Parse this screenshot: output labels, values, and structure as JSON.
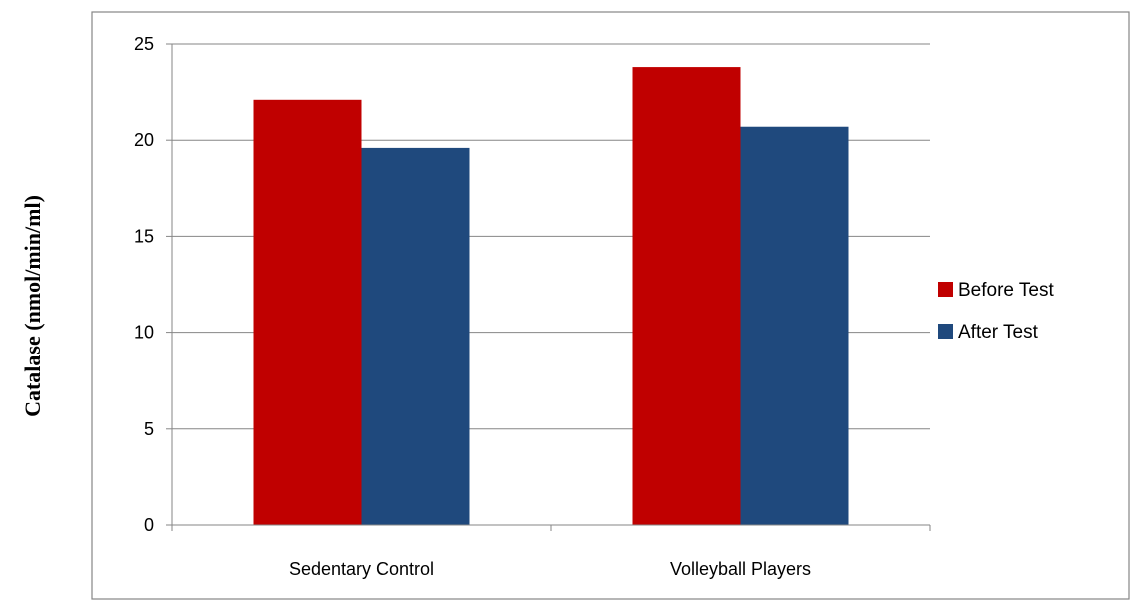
{
  "chart_data": {
    "type": "bar",
    "title": "",
    "xlabel": "",
    "ylabel": "Catalase (nmol/min/ml)",
    "categories": [
      "Sedentary Control",
      "Volleyball Players"
    ],
    "series": [
      {
        "name": "Before Test",
        "values": [
          22.1,
          23.8
        ],
        "color": "#C00000"
      },
      {
        "name": "After Test",
        "values": [
          19.6,
          20.7
        ],
        "color": "#1F497D"
      }
    ],
    "ylim": [
      0,
      25
    ],
    "yticks": [
      0,
      5,
      10,
      15,
      20,
      25
    ],
    "grid": true,
    "legend_position": "right"
  }
}
